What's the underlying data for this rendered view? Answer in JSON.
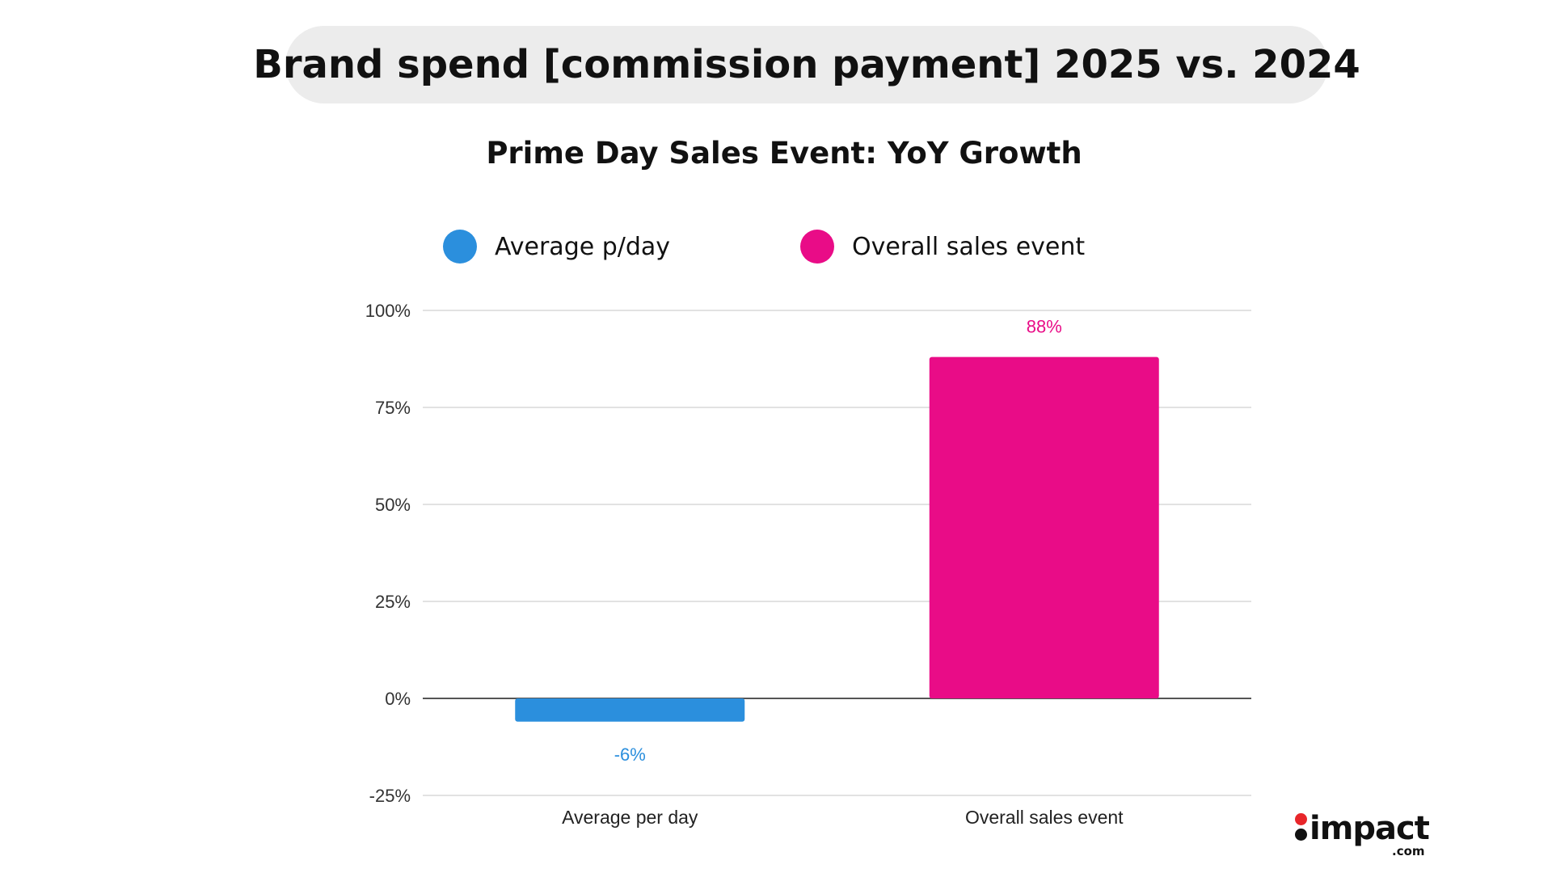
{
  "header": {
    "title": "Brand spend [commission payment] 2025 vs. 2024"
  },
  "chart_data": {
    "type": "bar",
    "title": "Prime Day Sales Event: YoY Growth",
    "categories": [
      "Average per day",
      "Overall sales event"
    ],
    "values": [
      -6,
      88
    ],
    "value_labels": [
      "-6%",
      "88%"
    ],
    "colors": [
      "#2b8fdd",
      "#e90c87"
    ],
    "legend": [
      {
        "label": "Average p/day",
        "color": "#2b8fdd"
      },
      {
        "label": "Overall sales event",
        "color": "#e90c87"
      }
    ],
    "legend_position": "top",
    "ylim": [
      -25,
      100
    ],
    "yticks": [
      -25,
      0,
      25,
      50,
      75,
      100
    ],
    "ytick_labels": [
      "-25%",
      "0%",
      "25%",
      "50%",
      "75%",
      "100%"
    ],
    "grid": true,
    "xlabel": "",
    "ylabel": ""
  },
  "logo": {
    "name": "impact",
    "tld": ".com"
  }
}
